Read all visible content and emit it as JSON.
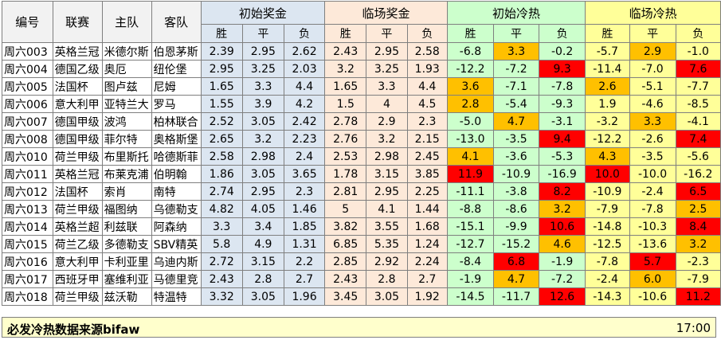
{
  "headers": {
    "id": "编号",
    "league": "联赛",
    "home": "主队",
    "away": "客队",
    "group_initial_odds": "初始奖金",
    "group_live_odds": "临场奖金",
    "group_initial_heat": "初始冷热",
    "group_live_heat": "临场冷热",
    "win": "胜",
    "draw": "平",
    "lose": "负"
  },
  "rows": [
    {
      "id": "周六003",
      "league": "英格兰冠",
      "home": "米德尔斯",
      "away": "伯恩茅斯",
      "io": [
        "2.39",
        "2.95",
        "2.62"
      ],
      "lo": [
        "2.43",
        "2.95",
        "2.58"
      ],
      "ih": [
        "-6.8",
        "3.3",
        "-0.2"
      ],
      "lh": [
        "-5.7",
        "2.9",
        "-1.0"
      ]
    },
    {
      "id": "周六004",
      "league": "德国乙级",
      "home": "奥厄",
      "away": "纽伦堡",
      "io": [
        "2.95",
        "3.25",
        "2.03"
      ],
      "lo": [
        "3.2",
        "3.25",
        "1.93"
      ],
      "ih": [
        "-12.2",
        "-7.2",
        "9.3"
      ],
      "lh": [
        "-11.4",
        "-7.0",
        "7.6"
      ]
    },
    {
      "id": "周六005",
      "league": "法国杯",
      "home": "图卢兹",
      "away": "尼姆",
      "io": [
        "1.65",
        "3.3",
        "4.4"
      ],
      "lo": [
        "1.65",
        "3.3",
        "4.4"
      ],
      "ih": [
        "3.6",
        "-7.1",
        "-7.8"
      ],
      "lh": [
        "2.6",
        "-5.1",
        "-7.7"
      ]
    },
    {
      "id": "周六006",
      "league": "意大利甲",
      "home": "亚特兰大",
      "away": "罗马",
      "io": [
        "1.55",
        "3.9",
        "4.2"
      ],
      "lo": [
        "1.5",
        "4",
        "4.5"
      ],
      "ih": [
        "2.8",
        "-5.4",
        "-9.3"
      ],
      "lh": [
        "1.9",
        "-4.6",
        "-8.5"
      ]
    },
    {
      "id": "周六007",
      "league": "德国甲级",
      "home": "波鸿",
      "away": "柏林联合",
      "io": [
        "2.52",
        "3.05",
        "2.42"
      ],
      "lo": [
        "2.78",
        "2.9",
        "2.3"
      ],
      "ih": [
        "-5.0",
        "4.7",
        "-3.1"
      ],
      "lh": [
        "-3.2",
        "3.3",
        "-4.1"
      ]
    },
    {
      "id": "周六008",
      "league": "德国甲级",
      "home": "菲尔特",
      "away": "奥格斯堡",
      "io": [
        "2.65",
        "3.2",
        "2.23"
      ],
      "lo": [
        "2.76",
        "3.2",
        "2.15"
      ],
      "ih": [
        "-13.0",
        "-3.5",
        "9.4"
      ],
      "lh": [
        "-12.2",
        "-2.6",
        "7.4"
      ]
    },
    {
      "id": "周六010",
      "league": "荷兰甲级",
      "home": "布里斯托",
      "away": "哈德斯菲",
      "io": [
        "2.58",
        "2.98",
        "2.4"
      ],
      "lo": [
        "2.53",
        "2.98",
        "2.45"
      ],
      "ih": [
        "4.1",
        "-3.6",
        "-5.3"
      ],
      "lh": [
        "4.3",
        "-3.5",
        "-5.6"
      ]
    },
    {
      "id": "周六011",
      "league": "英格兰冠",
      "home": "布莱克浦",
      "away": "伯明翰",
      "io": [
        "1.86",
        "3.05",
        "3.65"
      ],
      "lo": [
        "1.78",
        "3.15",
        "3.85"
      ],
      "ih": [
        "11.9",
        "-10.9",
        "-16.9"
      ],
      "lh": [
        "10.0",
        "-10.0",
        "-16.2"
      ]
    },
    {
      "id": "周六012",
      "league": "法国杯",
      "home": "索肖",
      "away": "南特",
      "io": [
        "2.74",
        "2.95",
        "2.3"
      ],
      "lo": [
        "2.81",
        "2.95",
        "2.25"
      ],
      "ih": [
        "-11.1",
        "-3.8",
        "8.2"
      ],
      "lh": [
        "-10.9",
        "-2.4",
        "6.5"
      ]
    },
    {
      "id": "周六013",
      "league": "荷兰甲级",
      "home": "福图纳",
      "away": "乌德勒支",
      "io": [
        "4.82",
        "4.05",
        "1.46"
      ],
      "lo": [
        "5",
        "4.1",
        "1.44"
      ],
      "ih": [
        "-8.8",
        "-8.6",
        "3.2"
      ],
      "lh": [
        "-7.9",
        "-7.8",
        "2.5"
      ]
    },
    {
      "id": "周六014",
      "league": "英格兰超",
      "home": "利兹联",
      "away": "阿森纳",
      "io": [
        "3.3",
        "3.4",
        "1.85"
      ],
      "lo": [
        "3.82",
        "3.55",
        "1.68"
      ],
      "ih": [
        "-15.1",
        "-9.9",
        "10.6"
      ],
      "lh": [
        "-14.8",
        "-10.3",
        "8.4"
      ]
    },
    {
      "id": "周六015",
      "league": "荷兰乙级",
      "home": "多德勒支",
      "away": "SBV精英",
      "io": [
        "5.8",
        "4.9",
        "1.31"
      ],
      "lo": [
        "6.85",
        "5.35",
        "1.24"
      ],
      "ih": [
        "-12.7",
        "-15.2",
        "4.6"
      ],
      "lh": [
        "-12.5",
        "-13.6",
        "3.2"
      ]
    },
    {
      "id": "周六016",
      "league": "意大利甲",
      "home": "卡利亚里",
      "away": "乌迪内斯",
      "io": [
        "2.72",
        "3.15",
        "2.2"
      ],
      "lo": [
        "2.85",
        "2.92",
        "2.24"
      ],
      "ih": [
        "-8.4",
        "6.8",
        "-1.9"
      ],
      "lh": [
        "-7.8",
        "5.7",
        "-2.3"
      ]
    },
    {
      "id": "周六017",
      "league": "西班牙甲",
      "home": "塞维利亚",
      "away": "马德里竞",
      "io": [
        "2.43",
        "2.8",
        "2.7"
      ],
      "lo": [
        "2.43",
        "2.8",
        "2.7"
      ],
      "ih": [
        "-1.9",
        "4.7",
        "-7.2"
      ],
      "lh": [
        "-2.4",
        "6.0",
        "-7.9"
      ]
    },
    {
      "id": "周六018",
      "league": "荷兰甲级",
      "home": "兹沃勒",
      "away": "特温特",
      "io": [
        "3.32",
        "3.05",
        "1.96"
      ],
      "lo": [
        "3.45",
        "3.05",
        "1.92"
      ],
      "ih": [
        "-14.5",
        "-11.7",
        "12.6"
      ],
      "lh": [
        "-14.3",
        "-10.6",
        "11.2"
      ]
    }
  ],
  "initial_heat_highlight": [
    [
      "white",
      "orange",
      "white"
    ],
    [
      "white",
      "white",
      "red"
    ],
    [
      "orange",
      "white",
      "white"
    ],
    [
      "orange",
      "white",
      "white"
    ],
    [
      "white",
      "orange",
      "white"
    ],
    [
      "white",
      "white",
      "red"
    ],
    [
      "orange",
      "white",
      "white"
    ],
    [
      "red",
      "white",
      "white"
    ],
    [
      "white",
      "white",
      "red"
    ],
    [
      "white",
      "white",
      "orange"
    ],
    [
      "white",
      "white",
      "red"
    ],
    [
      "white",
      "white",
      "orange"
    ],
    [
      "white",
      "red",
      "white"
    ],
    [
      "white",
      "orange",
      "white"
    ],
    [
      "white",
      "white",
      "red"
    ]
  ],
  "live_heat_highlight": [
    [
      "white",
      "orange",
      "white"
    ],
    [
      "white",
      "white",
      "red"
    ],
    [
      "orange",
      "white",
      "white"
    ],
    [
      "white",
      "white",
      "white"
    ],
    [
      "white",
      "orange",
      "white"
    ],
    [
      "white",
      "white",
      "red"
    ],
    [
      "orange",
      "white",
      "white"
    ],
    [
      "red",
      "white",
      "white"
    ],
    [
      "white",
      "white",
      "red"
    ],
    [
      "white",
      "white",
      "orange"
    ],
    [
      "white",
      "white",
      "red"
    ],
    [
      "white",
      "white",
      "orange"
    ],
    [
      "white",
      "red",
      "white"
    ],
    [
      "white",
      "orange",
      "white"
    ],
    [
      "white",
      "white",
      "red"
    ]
  ],
  "colors": {
    "odds_bg": "#dce6f1",
    "live_odds_bg": "#fde9d9",
    "initial_heat_bg": "#ccffcc",
    "live_heat_bg": "#ffff99",
    "hot": "#ff0000",
    "warm": "#ffc000"
  },
  "footer": {
    "note": "必发冷热数据来源bifaw",
    "time": "17:00"
  }
}
